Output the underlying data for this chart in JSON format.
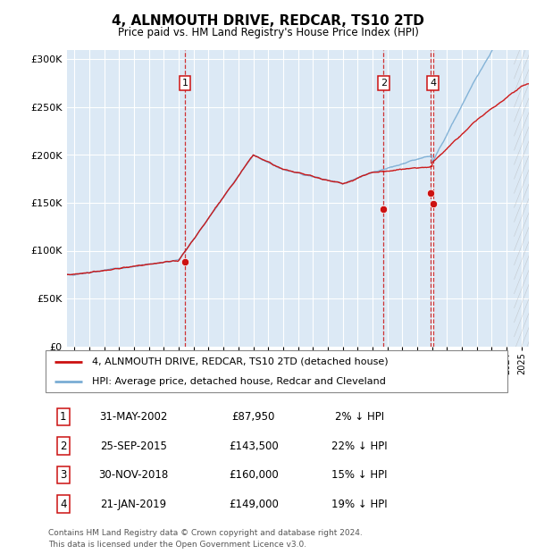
{
  "title": "4, ALNMOUTH DRIVE, REDCAR, TS10 2TD",
  "subtitle": "Price paid vs. HM Land Registry's House Price Index (HPI)",
  "ylim": [
    0,
    310000
  ],
  "yticks": [
    0,
    50000,
    100000,
    150000,
    200000,
    250000,
    300000
  ],
  "ytick_labels": [
    "£0",
    "£50K",
    "£100K",
    "£150K",
    "£200K",
    "£250K",
    "£300K"
  ],
  "bg_color": "#dce9f5",
  "grid_color": "#ffffff",
  "hpi_color": "#7aadd4",
  "price_color": "#cc1111",
  "transactions": [
    {
      "num": 1,
      "date_x": 2002.42,
      "price": 87950
    },
    {
      "num": 2,
      "date_x": 2015.73,
      "price": 143500
    },
    {
      "num": 3,
      "date_x": 2018.92,
      "price": 160000
    },
    {
      "num": 4,
      "date_x": 2019.06,
      "price": 149000
    }
  ],
  "show_in_chart": [
    1,
    2,
    4
  ],
  "legend_line1": "4, ALNMOUTH DRIVE, REDCAR, TS10 2TD (detached house)",
  "legend_line2": "HPI: Average price, detached house, Redcar and Cleveland",
  "table_rows": [
    {
      "num": "1",
      "date": "31-MAY-2002",
      "price": "£87,950",
      "pct": "2% ↓ HPI"
    },
    {
      "num": "2",
      "date": "25-SEP-2015",
      "price": "£143,500",
      "pct": "22% ↓ HPI"
    },
    {
      "num": "3",
      "date": "30-NOV-2018",
      "price": "£160,000",
      "pct": "15% ↓ HPI"
    },
    {
      "num": "4",
      "date": "21-JAN-2019",
      "price": "£149,000",
      "pct": "19% ↓ HPI"
    }
  ],
  "footnote1": "Contains HM Land Registry data © Crown copyright and database right 2024.",
  "footnote2": "This data is licensed under the Open Government Licence v3.0.",
  "xmin": 1994.5,
  "xmax": 2025.5
}
